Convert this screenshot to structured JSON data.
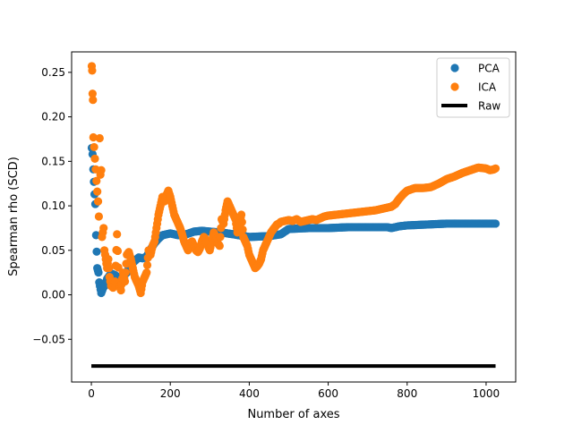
{
  "chart_data": {
    "type": "scatter",
    "title": "",
    "xlabel": "Number of axes",
    "ylabel": "Spearman rho (SCD)",
    "xlim": [
      -50,
      1075
    ],
    "ylim": [
      -0.098,
      0.273
    ],
    "xticks": [
      0,
      200,
      400,
      600,
      800,
      1000
    ],
    "xtick_labels": [
      "0",
      "200",
      "400",
      "600",
      "800",
      "1000"
    ],
    "yticks": [
      -0.05,
      0.0,
      0.05,
      0.1,
      0.15,
      0.2,
      0.25
    ],
    "ytick_labels": [
      "−0.05",
      "0.00",
      "0.05",
      "0.10",
      "0.15",
      "0.20",
      "0.25"
    ],
    "grid": false,
    "legend": {
      "position": "top-right",
      "entries": [
        {
          "label": "PCA",
          "marker": "circle",
          "color": "#1f77b4"
        },
        {
          "label": "ICA",
          "marker": "circle",
          "color": "#ff7f0e"
        },
        {
          "label": "Raw",
          "marker": "line",
          "color": "#000000"
        }
      ]
    },
    "series": [
      {
        "name": "PCA",
        "style": "scatter",
        "color": "#1f77b4",
        "x": [
          1,
          3,
          5,
          8,
          10,
          12,
          15,
          18,
          20,
          25,
          30,
          35,
          40,
          50,
          60,
          70,
          80,
          90,
          100,
          110,
          120,
          130,
          140,
          150,
          160,
          170,
          180,
          190,
          200,
          220,
          240,
          260,
          280,
          300,
          330,
          360,
          400,
          450,
          480,
          500,
          550,
          600,
          650,
          700,
          750,
          760,
          780,
          800,
          850,
          900,
          950,
          1000,
          1024
        ],
        "y": [
          0.165,
          0.158,
          0.141,
          0.113,
          0.102,
          0.067,
          0.03,
          0.025,
          0.014,
          0.002,
          0.008,
          0.011,
          0.018,
          0.024,
          0.022,
          0.019,
          0.021,
          0.025,
          0.034,
          0.038,
          0.042,
          0.041,
          0.043,
          0.051,
          0.058,
          0.063,
          0.067,
          0.068,
          0.069,
          0.067,
          0.068,
          0.071,
          0.072,
          0.071,
          0.07,
          0.068,
          0.065,
          0.066,
          0.068,
          0.074,
          0.075,
          0.075,
          0.076,
          0.076,
          0.076,
          0.075,
          0.077,
          0.078,
          0.079,
          0.08,
          0.08,
          0.08,
          0.08
        ]
      },
      {
        "name": "ICA",
        "style": "scatter",
        "color": "#ff7f0e",
        "x": [
          1,
          2,
          3,
          4,
          5,
          7,
          9,
          11,
          13,
          15,
          17,
          19,
          21,
          23,
          25,
          27,
          29,
          31,
          33,
          35,
          38,
          40,
          43,
          46,
          50,
          55,
          60,
          65,
          70,
          75,
          80,
          85,
          90,
          95,
          100,
          105,
          110,
          115,
          120,
          125,
          130,
          135,
          140,
          145,
          150,
          155,
          160,
          165,
          170,
          175,
          180,
          185,
          190,
          195,
          200,
          205,
          210,
          215,
          220,
          225,
          230,
          235,
          240,
          245,
          250,
          255,
          260,
          265,
          270,
          275,
          280,
          285,
          290,
          295,
          300,
          305,
          310,
          315,
          320,
          325,
          330,
          335,
          340,
          345,
          350,
          355,
          360,
          365,
          370,
          375,
          380,
          385,
          390,
          395,
          400,
          405,
          410,
          415,
          420,
          425,
          430,
          435,
          440,
          445,
          450,
          455,
          460,
          465,
          470,
          475,
          480,
          490,
          500,
          510,
          520,
          530,
          540,
          550,
          560,
          570,
          580,
          590,
          600,
          620,
          640,
          660,
          680,
          700,
          720,
          740,
          760,
          770,
          780,
          790,
          800,
          820,
          840,
          860,
          880,
          900,
          920,
          940,
          960,
          980,
          1000,
          1010,
          1020,
          1024
        ],
        "y": [
          0.257,
          0.252,
          0.226,
          0.219,
          0.177,
          0.166,
          0.153,
          0.141,
          0.128,
          0.116,
          0.105,
          0.088,
          0.176,
          0.135,
          0.14,
          0.065,
          0.07,
          0.075,
          0.05,
          0.045,
          0.035,
          0.03,
          0.04,
          0.02,
          0.01,
          0.008,
          0.015,
          0.068,
          0.012,
          0.005,
          0.025,
          0.015,
          0.045,
          0.048,
          0.04,
          0.03,
          0.02,
          0.015,
          0.01,
          0.002,
          0.015,
          0.02,
          0.025,
          0.05,
          0.045,
          0.055,
          0.06,
          0.075,
          0.09,
          0.1,
          0.11,
          0.105,
          0.112,
          0.117,
          0.11,
          0.1,
          0.09,
          0.085,
          0.08,
          0.075,
          0.068,
          0.06,
          0.055,
          0.05,
          0.058,
          0.06,
          0.055,
          0.05,
          0.048,
          0.052,
          0.06,
          0.065,
          0.062,
          0.055,
          0.05,
          0.06,
          0.07,
          0.065,
          0.058,
          0.055,
          0.085,
          0.08,
          0.095,
          0.105,
          0.1,
          0.095,
          0.09,
          0.085,
          0.07,
          0.08,
          0.09,
          0.065,
          0.06,
          0.055,
          0.045,
          0.04,
          0.035,
          0.03,
          0.032,
          0.035,
          0.04,
          0.05,
          0.055,
          0.06,
          0.065,
          0.07,
          0.073,
          0.076,
          0.079,
          0.08,
          0.082,
          0.083,
          0.084,
          0.083,
          0.085,
          0.082,
          0.083,
          0.084,
          0.085,
          0.084,
          0.086,
          0.088,
          0.089,
          0.09,
          0.091,
          0.092,
          0.093,
          0.094,
          0.095,
          0.097,
          0.099,
          0.102,
          0.108,
          0.113,
          0.117,
          0.12,
          0.12,
          0.121,
          0.125,
          0.13,
          0.133,
          0.137,
          0.14,
          0.143,
          0.142,
          0.14,
          0.141,
          0.142
        ]
      },
      {
        "name": "Raw",
        "style": "line",
        "color": "#000000",
        "x": [
          0,
          1024
        ],
        "y": [
          -0.08,
          -0.08
        ]
      }
    ]
  }
}
